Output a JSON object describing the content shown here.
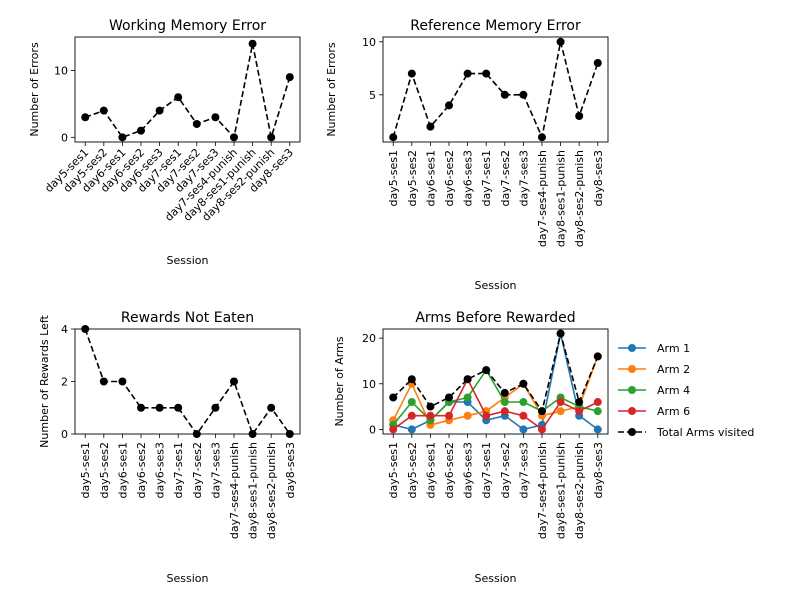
{
  "sessions": [
    "day5-ses1",
    "day5-ses2",
    "day6-ses1",
    "day6-ses2",
    "day6-ses3",
    "day7-ses1",
    "day7-ses2",
    "day7-ses3",
    "day7-ses4-punish",
    "day8-ses1-punish",
    "day8-ses2-punish",
    "day8-ses3"
  ],
  "colors": {
    "arm1": "#1f77b4",
    "arm2": "#ff7f0e",
    "arm4": "#2ca02c",
    "arm6": "#d62728",
    "total": "#000000"
  },
  "chart_data": [
    {
      "id": "working",
      "type": "line",
      "title": "Working Memory Error",
      "xlabel": "Session",
      "ylabel": "Number of Errors",
      "ylim": [
        -0.7,
        15
      ],
      "yticks": [
        0,
        10
      ],
      "xtick_rotation": 45,
      "series": [
        {
          "color": "#000000",
          "dashed": true,
          "values": [
            3,
            4,
            0,
            1,
            4,
            6,
            2,
            3,
            0,
            14,
            0,
            9
          ]
        }
      ]
    },
    {
      "id": "reference",
      "type": "line",
      "title": "Reference Memory Error",
      "xlabel": "Session",
      "ylabel": "Number of Errors",
      "ylim": [
        0.55,
        10.45
      ],
      "yticks": [
        5,
        10
      ],
      "xtick_rotation": 90,
      "series": [
        {
          "color": "#000000",
          "dashed": true,
          "values": [
            1,
            7,
            2,
            4,
            7,
            7,
            5,
            5,
            1,
            10,
            3,
            8
          ]
        }
      ]
    },
    {
      "id": "rewards",
      "type": "line",
      "title": "Rewards Not Eaten",
      "xlabel": "Session",
      "ylabel": "Number of Rewards Left",
      "ylim": [
        0,
        4
      ],
      "yticks": [
        0,
        2,
        4
      ],
      "xtick_rotation": 90,
      "series": [
        {
          "color": "#000000",
          "dashed": true,
          "values": [
            4,
            2,
            2,
            1,
            1,
            1,
            0,
            1,
            2,
            0,
            1,
            0
          ]
        }
      ]
    },
    {
      "id": "arms",
      "type": "line",
      "title": "Arms Before Rewarded",
      "xlabel": "Session",
      "ylabel": "Number of Arms",
      "ylim": [
        -1,
        22
      ],
      "yticks": [
        0,
        10,
        20
      ],
      "xtick_rotation": 90,
      "legend_position": "right",
      "series": [
        {
          "name": "Arm 1",
          "color": "#1f77b4",
          "dashed": false,
          "values": [
            1,
            0,
            2,
            6,
            6,
            2,
            3,
            0,
            1,
            21,
            3,
            0
          ]
        },
        {
          "name": "Arm 2",
          "color": "#ff7f0e",
          "dashed": false,
          "values": [
            2,
            10,
            1,
            2,
            3,
            4,
            7,
            10,
            3,
            4,
            5,
            16
          ]
        },
        {
          "name": "Arm 4",
          "color": "#2ca02c",
          "dashed": false,
          "values": [
            1,
            6,
            2,
            6,
            7,
            13,
            6,
            6,
            4,
            7,
            5,
            4
          ]
        },
        {
          "name": "Arm 6",
          "color": "#d62728",
          "dashed": false,
          "values": [
            0,
            3,
            3,
            3,
            11,
            3,
            4,
            3,
            0,
            6,
            4,
            6
          ]
        },
        {
          "name": "Total Arms visited",
          "color": "#000000",
          "dashed": true,
          "values": [
            7,
            11,
            5,
            7,
            11,
            13,
            8,
            10,
            4,
            21,
            6,
            16
          ]
        }
      ]
    }
  ]
}
